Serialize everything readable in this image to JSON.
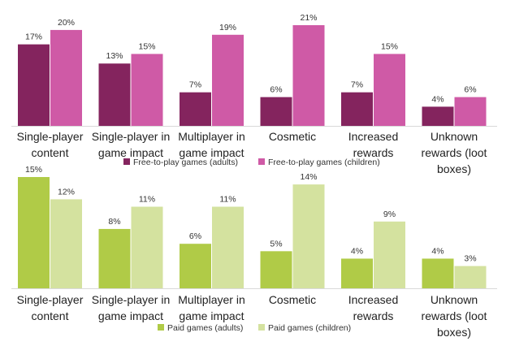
{
  "chart_data": [
    {
      "type": "bar",
      "categories": [
        [
          "Single-player",
          "content"
        ],
        [
          "Single-player in",
          "game impact"
        ],
        [
          "Multiplayer in",
          "game impact"
        ],
        [
          "Cosmetic"
        ],
        [
          "Increased",
          "rewards"
        ],
        [
          "Unknown",
          "rewards (loot",
          "boxes)"
        ]
      ],
      "series": [
        {
          "name": "Free-to-play games (adults)",
          "color": "#84245e",
          "values": [
            17,
            13,
            7,
            6,
            7,
            4
          ],
          "labels": [
            "17%",
            "13%",
            "7%",
            "6%",
            "7%",
            "4%"
          ]
        },
        {
          "name": "Free-to-play games (children)",
          "color": "#cf5aa6",
          "values": [
            20,
            15,
            19,
            21,
            15,
            6
          ],
          "labels": [
            "20%",
            "15%",
            "19%",
            "21%",
            "15%",
            "6%"
          ]
        }
      ],
      "ylim": [
        0,
        21
      ],
      "grid": false,
      "legend_position": "bottom"
    },
    {
      "type": "bar",
      "categories": [
        [
          "Single-player",
          "content"
        ],
        [
          "Single-player in",
          "game impact"
        ],
        [
          "Multiplayer in",
          "game impact"
        ],
        [
          "Cosmetic"
        ],
        [
          "Increased",
          "rewards"
        ],
        [
          "Unknown",
          "rewards (loot",
          "boxes)"
        ]
      ],
      "series": [
        {
          "name": "Paid games (adults)",
          "color": "#b0cb47",
          "values": [
            15,
            8,
            6,
            5,
            4,
            4
          ],
          "labels": [
            "15%",
            "8%",
            "6%",
            "5%",
            "4%",
            "4%"
          ]
        },
        {
          "name": "Paid games (children)",
          "color": "#d4e29f",
          "values": [
            12,
            11,
            11,
            14,
            9,
            3
          ],
          "labels": [
            "12%",
            "11%",
            "11%",
            "14%",
            "9%",
            "3%"
          ]
        }
      ],
      "ylim": [
        0,
        15
      ],
      "grid": false,
      "legend_position": "bottom"
    }
  ]
}
